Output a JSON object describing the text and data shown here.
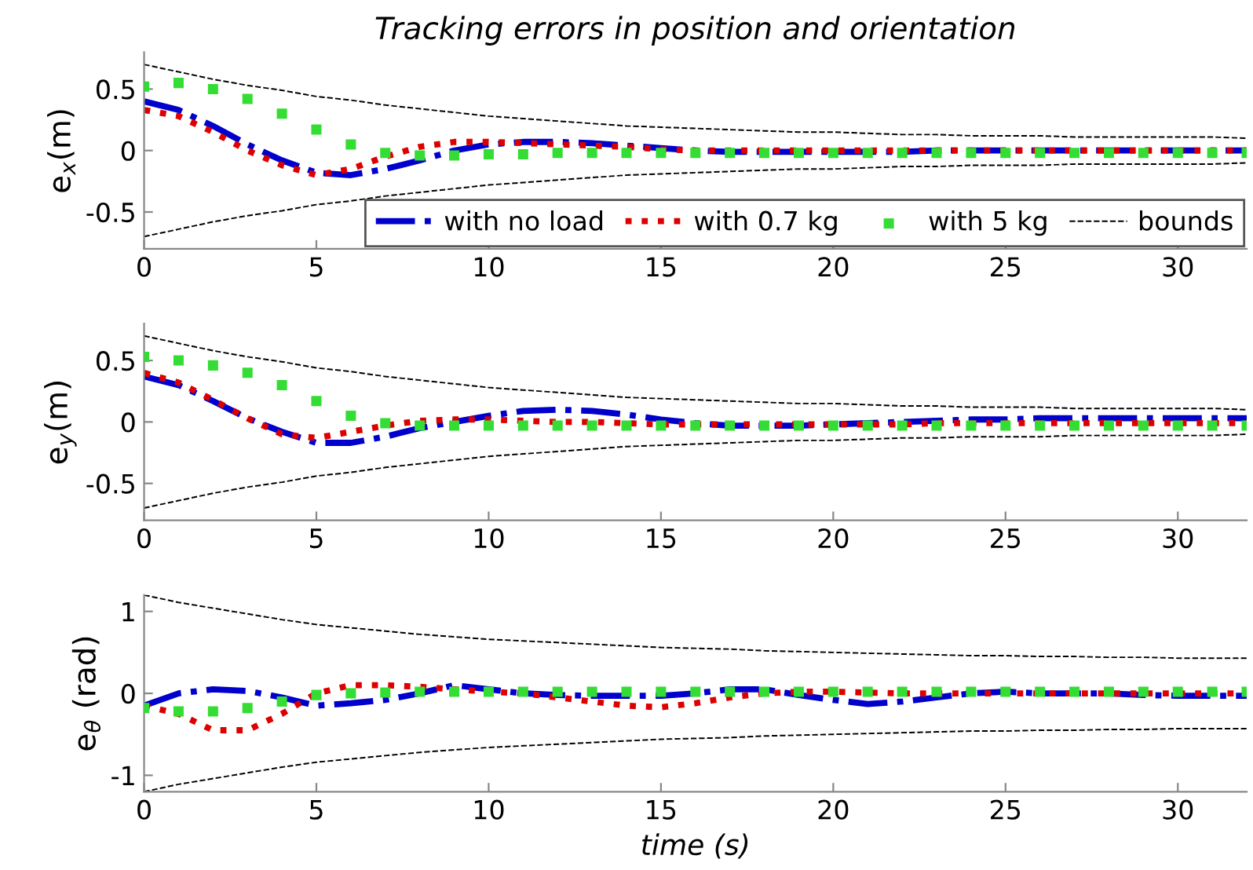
{
  "chart_data": [
    {
      "type": "line",
      "title": "Tracking errors in position and orientation",
      "ylabel": "e$_{x}$(m)",
      "x": [
        0,
        1,
        2,
        3,
        4,
        5,
        6,
        7,
        8,
        9,
        10,
        11,
        12,
        13,
        14,
        15,
        16,
        17,
        18,
        19,
        20,
        21,
        22,
        23,
        24,
        25,
        26,
        27,
        28,
        29,
        30,
        31,
        32
      ],
      "xlim": [
        0,
        32
      ],
      "xticks": [
        0,
        5,
        10,
        15,
        20,
        25,
        30
      ],
      "ylim": [
        -0.8,
        0.8
      ],
      "yticks": [
        -0.5,
        0,
        0.5
      ],
      "legend": "bottom right",
      "grid": false,
      "series": [
        {
          "name": "with no load",
          "color": "#0000cc",
          "line_style": "dashdot",
          "values": [
            0.4,
            0.33,
            0.2,
            0.05,
            -0.08,
            -0.18,
            -0.2,
            -0.15,
            -0.08,
            0.0,
            0.05,
            0.07,
            0.07,
            0.06,
            0.04,
            0.02,
            0,
            -0.01,
            -0.01,
            -0.01,
            -0.01,
            -0.01,
            -0.01,
            0,
            0,
            0,
            0,
            0,
            0,
            0,
            0,
            0,
            0
          ]
        },
        {
          "name": "with 0.7 kg",
          "color": "#dd0000",
          "line_style": "dotted",
          "values": [
            0.33,
            0.28,
            0.15,
            0.0,
            -0.12,
            -0.2,
            -0.15,
            -0.05,
            0.03,
            0.07,
            0.07,
            0.06,
            0.05,
            0.04,
            0.03,
            0.01,
            0,
            0,
            0,
            0,
            0,
            0,
            0,
            0,
            0,
            0,
            0,
            0,
            0,
            0,
            0,
            0,
            0
          ]
        },
        {
          "name": "with 5 kg",
          "color": "#33dd33",
          "type": "scatter",
          "marker": "square",
          "values": [
            0.52,
            0.55,
            0.5,
            0.42,
            0.3,
            0.17,
            0.05,
            -0.02,
            -0.04,
            -0.04,
            -0.03,
            -0.03,
            -0.02,
            -0.02,
            -0.02,
            -0.02,
            -0.02,
            -0.02,
            -0.02,
            -0.02,
            -0.02,
            -0.02,
            -0.02,
            -0.02,
            -0.02,
            -0.02,
            -0.02,
            -0.02,
            -0.02,
            -0.02,
            -0.02,
            -0.02,
            -0.02
          ]
        },
        {
          "name": "bounds",
          "color": "#000000",
          "line_style": "dashed",
          "values": [
            0.7,
            0.64,
            0.58,
            0.53,
            0.49,
            0.44,
            0.41,
            0.37,
            0.34,
            0.31,
            0.28,
            0.26,
            0.24,
            0.22,
            0.2,
            0.19,
            0.18,
            0.17,
            0.16,
            0.15,
            0.15,
            0.14,
            0.13,
            0.13,
            0.12,
            0.12,
            0.12,
            0.11,
            0.11,
            0.11,
            0.11,
            0.11,
            0.1
          ]
        },
        {
          "color": "#000000",
          "line_style": "dashed",
          "values": [
            -0.7,
            -0.64,
            -0.58,
            -0.53,
            -0.49,
            -0.44,
            -0.41,
            -0.37,
            -0.34,
            -0.31,
            -0.28,
            -0.26,
            -0.24,
            -0.22,
            -0.2,
            -0.19,
            -0.18,
            -0.17,
            -0.16,
            -0.15,
            -0.15,
            -0.14,
            -0.13,
            -0.13,
            -0.12,
            -0.12,
            -0.12,
            -0.11,
            -0.11,
            -0.11,
            -0.11,
            -0.11,
            -0.1
          ]
        }
      ]
    },
    {
      "type": "line",
      "ylabel": "e$_{y}$(m)",
      "x": [
        0,
        1,
        2,
        3,
        4,
        5,
        6,
        7,
        8,
        9,
        10,
        11,
        12,
        13,
        14,
        15,
        16,
        17,
        18,
        19,
        20,
        21,
        22,
        23,
        24,
        25,
        26,
        27,
        28,
        29,
        30,
        31,
        32
      ],
      "xlim": [
        0,
        32
      ],
      "xticks": [
        0,
        5,
        10,
        15,
        20,
        25,
        30
      ],
      "ylim": [
        -0.8,
        0.8
      ],
      "yticks": [
        -0.5,
        0,
        0.5
      ],
      "grid": false,
      "series": [
        {
          "color": "#0000cc",
          "line_style": "dashdot",
          "values": [
            0.37,
            0.3,
            0.17,
            0.03,
            -0.08,
            -0.17,
            -0.17,
            -0.12,
            -0.05,
            0.0,
            0.05,
            0.09,
            0.1,
            0.09,
            0.06,
            0.02,
            -0.01,
            -0.03,
            -0.03,
            -0.03,
            -0.02,
            -0.01,
            0.0,
            0.01,
            0.02,
            0.02,
            0.03,
            0.03,
            0.03,
            0.03,
            0.03,
            0.03,
            0.03
          ]
        },
        {
          "color": "#dd0000",
          "line_style": "dotted",
          "values": [
            0.4,
            0.32,
            0.18,
            0.03,
            -0.1,
            -0.13,
            -0.08,
            -0.03,
            0.01,
            0.02,
            0.02,
            0.01,
            0,
            0,
            -0.01,
            -0.02,
            -0.02,
            -0.02,
            -0.02,
            -0.02,
            -0.02,
            -0.02,
            -0.02,
            -0.01,
            -0.01,
            -0.01,
            -0.01,
            -0.01,
            -0.01,
            -0.01,
            -0.01,
            -0.01,
            -0.01
          ]
        },
        {
          "color": "#33dd33",
          "type": "scatter",
          "marker": "square",
          "values": [
            0.53,
            0.5,
            0.46,
            0.4,
            0.3,
            0.17,
            0.05,
            -0.01,
            -0.03,
            -0.03,
            -0.03,
            -0.03,
            -0.03,
            -0.03,
            -0.03,
            -0.03,
            -0.03,
            -0.03,
            -0.03,
            -0.03,
            -0.03,
            -0.03,
            -0.03,
            -0.03,
            -0.03,
            -0.03,
            -0.03,
            -0.03,
            -0.03,
            -0.03,
            -0.03,
            -0.03,
            -0.03
          ]
        },
        {
          "color": "#000000",
          "line_style": "dashed",
          "values": [
            0.7,
            0.64,
            0.58,
            0.53,
            0.49,
            0.44,
            0.41,
            0.37,
            0.34,
            0.31,
            0.28,
            0.26,
            0.24,
            0.22,
            0.2,
            0.19,
            0.18,
            0.17,
            0.16,
            0.15,
            0.15,
            0.14,
            0.13,
            0.13,
            0.12,
            0.12,
            0.12,
            0.11,
            0.11,
            0.11,
            0.11,
            0.11,
            0.1
          ]
        },
        {
          "color": "#000000",
          "line_style": "dashed",
          "values": [
            -0.7,
            -0.64,
            -0.58,
            -0.53,
            -0.49,
            -0.44,
            -0.41,
            -0.37,
            -0.34,
            -0.31,
            -0.28,
            -0.26,
            -0.24,
            -0.22,
            -0.2,
            -0.19,
            -0.18,
            -0.17,
            -0.16,
            -0.15,
            -0.15,
            -0.14,
            -0.13,
            -0.13,
            -0.12,
            -0.12,
            -0.12,
            -0.11,
            -0.11,
            -0.11,
            -0.11,
            -0.11,
            -0.1
          ]
        }
      ]
    },
    {
      "type": "line",
      "ylabel": "e$_{θ}$ (rad)",
      "xlabel": "time (s)",
      "x": [
        0,
        1,
        2,
        3,
        4,
        5,
        6,
        7,
        8,
        9,
        10,
        11,
        12,
        13,
        14,
        15,
        16,
        17,
        18,
        19,
        20,
        21,
        22,
        23,
        24,
        25,
        26,
        27,
        28,
        29,
        30,
        31,
        32
      ],
      "xlim": [
        0,
        32
      ],
      "xticks": [
        0,
        5,
        10,
        15,
        20,
        25,
        30
      ],
      "ylim": [
        -1.2,
        1.2
      ],
      "yticks": [
        -1,
        0,
        1
      ],
      "grid": false,
      "series": [
        {
          "color": "#0000cc",
          "line_style": "dashdot",
          "values": [
            -0.15,
            0.0,
            0.05,
            0.03,
            -0.05,
            -0.15,
            -0.12,
            -0.08,
            0.0,
            0.1,
            0.05,
            0.0,
            -0.02,
            -0.03,
            -0.03,
            -0.03,
            0.0,
            0.05,
            0.05,
            -0.02,
            -0.08,
            -0.13,
            -0.1,
            -0.05,
            0,
            0.02,
            0,
            0,
            0,
            -0.02,
            -0.03,
            -0.03,
            -0.03
          ]
        },
        {
          "color": "#dd0000",
          "line_style": "dotted",
          "values": [
            -0.15,
            -0.25,
            -0.45,
            -0.45,
            -0.25,
            0.0,
            0.1,
            0.1,
            0.08,
            0.05,
            0.02,
            0,
            -0.05,
            -0.1,
            -0.15,
            -0.17,
            -0.12,
            -0.05,
            0,
            0.02,
            0.02,
            0.01,
            0,
            0,
            0,
            0,
            0,
            0,
            0,
            0,
            0,
            0,
            0
          ]
        },
        {
          "color": "#33dd33",
          "type": "scatter",
          "marker": "square",
          "values": [
            -0.18,
            -0.22,
            -0.22,
            -0.18,
            -0.1,
            -0.02,
            0.0,
            0.01,
            0.02,
            0.02,
            0.02,
            0.02,
            0.02,
            0.02,
            0.02,
            0.02,
            0.02,
            0.02,
            0.02,
            0.02,
            0.02,
            0.02,
            0.02,
            0.02,
            0.02,
            0.02,
            0.02,
            0.02,
            0.02,
            0.02,
            0.02,
            0.02,
            0.02
          ]
        },
        {
          "color": "#000000",
          "line_style": "dashed",
          "values": [
            1.2,
            1.11,
            1.04,
            0.97,
            0.9,
            0.84,
            0.8,
            0.76,
            0.72,
            0.69,
            0.66,
            0.64,
            0.62,
            0.6,
            0.58,
            0.56,
            0.55,
            0.54,
            0.52,
            0.51,
            0.5,
            0.49,
            0.48,
            0.47,
            0.46,
            0.46,
            0.45,
            0.45,
            0.44,
            0.44,
            0.43,
            0.43,
            0.43
          ]
        },
        {
          "color": "#000000",
          "line_style": "dashed",
          "values": [
            -1.2,
            -1.11,
            -1.04,
            -0.97,
            -0.9,
            -0.84,
            -0.8,
            -0.76,
            -0.72,
            -0.69,
            -0.66,
            -0.64,
            -0.62,
            -0.6,
            -0.58,
            -0.56,
            -0.55,
            -0.54,
            -0.52,
            -0.51,
            -0.5,
            -0.49,
            -0.48,
            -0.47,
            -0.46,
            -0.46,
            -0.45,
            -0.45,
            -0.44,
            -0.44,
            -0.43,
            -0.43,
            -0.43
          ]
        }
      ]
    }
  ]
}
